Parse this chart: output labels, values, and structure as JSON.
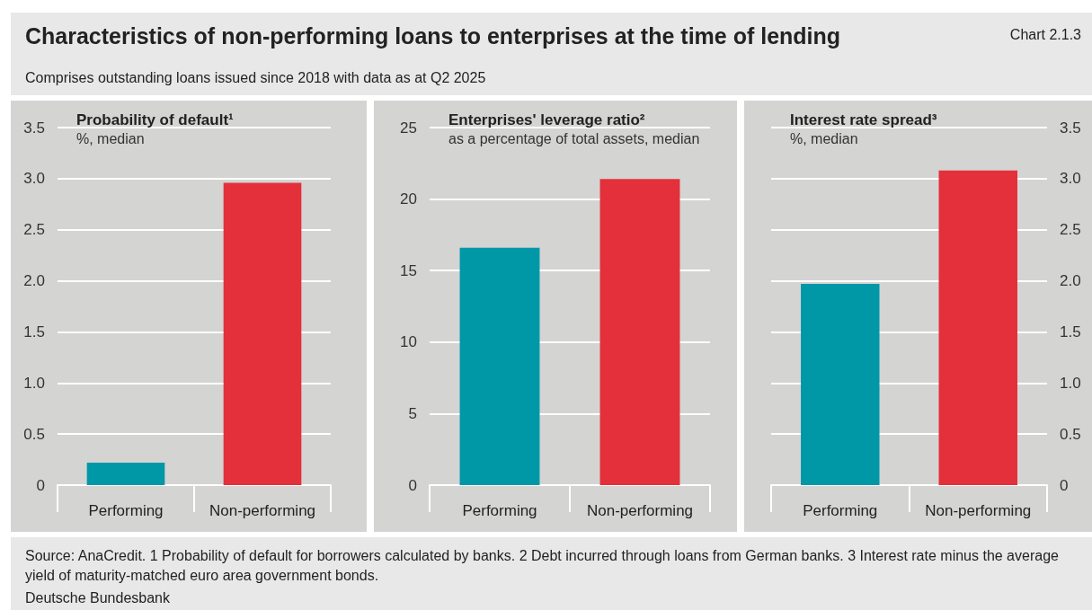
{
  "chart_data": [
    {
      "type": "bar",
      "title": "Probability of default¹",
      "ylabel": "%, median",
      "annotations": [
        "Characteristics of non-performing loans to enterprises at the time of lending",
        "Chart 2.1.3",
        "Comprises outstanding loans issued since 2018 with data as at Q2 2025",
        "Source: AnaCredit. 1 Probability of default for borrowers calculated by banks. 2 Debt incurred through loans from German banks. 3 Interest rate minus the average yield of maturity-matched euro area government bonds.",
        "Deutsche Bundesbank"
      ],
      "categories": [
        "Performing",
        "Non-performing"
      ],
      "colors": [
        "#0098a6",
        "#e3303a"
      ],
      "series": [
        {
          "values": [
            0.22,
            2.96
          ]
        }
      ],
      "ylim": [
        0,
        3.5
      ],
      "yticks": [
        0,
        0.5,
        {
          "value": 1,
          "label": "1.0"
        },
        1.5,
        {
          "value": 2,
          "label": "2.0"
        },
        2.5,
        {
          "value": 3,
          "label": "3.0"
        },
        3.5
      ],
      "grid": "y"
    },
    {
      "type": "bar",
      "title": "Enterprises' leverage ratio²",
      "ylabel": "as a percentage of total assets, median",
      "categories": [
        "Performing",
        "Non-performing"
      ],
      "colors": [
        "#0098a6",
        "#e3303a"
      ],
      "series": [
        {
          "values": [
            16.6,
            21.4
          ]
        }
      ],
      "ylim": [
        0,
        25
      ],
      "yticks": [
        0,
        5,
        10,
        15,
        20,
        25
      ],
      "grid": "y"
    },
    {
      "type": "bar",
      "title": "Interest rate spread³",
      "y2label": "%, median",
      "categories": [
        "Performing",
        "Non-performing"
      ],
      "colors": [
        "#0098a6",
        "#e3303a"
      ],
      "series": [
        {
          "values": [
            1.97,
            3.08
          ],
          "axis": "y2"
        }
      ],
      "y2lim": [
        0,
        3.5
      ],
      "y2ticks": [
        0,
        0.5,
        {
          "value": 1,
          "label": "1.0"
        },
        1.5,
        {
          "value": 2,
          "label": "2.0"
        },
        2.5,
        {
          "value": 3,
          "label": "3.0"
        },
        3.5
      ],
      "grid": "y"
    }
  ]
}
